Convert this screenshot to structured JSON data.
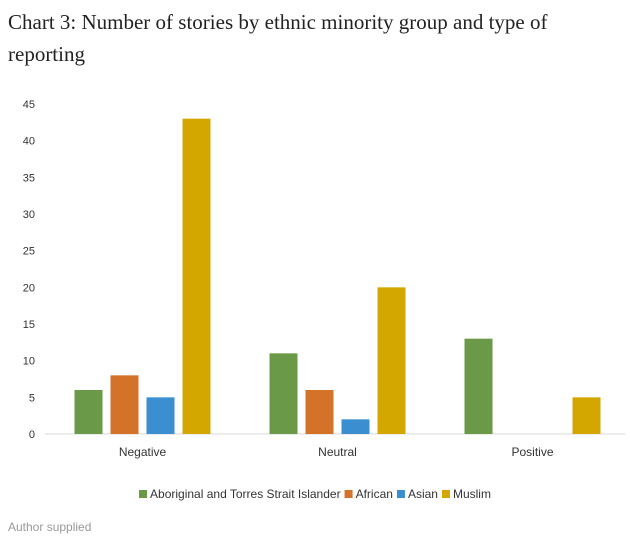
{
  "figure": {
    "title": "Chart 3: Number of stories by ethnic minority group and type of reporting",
    "caption": "Author supplied"
  },
  "chart_data": {
    "type": "bar",
    "title": "",
    "xlabel": "",
    "ylabel": "",
    "categories": [
      "Negative",
      "Neutral",
      "Positive"
    ],
    "series": [
      {
        "name": "Aboriginal and Torres Strait Islander",
        "color": "#6a9a48",
        "values": [
          6,
          11,
          13
        ]
      },
      {
        "name": "African",
        "color": "#d4722a",
        "values": [
          8,
          6,
          0
        ]
      },
      {
        "name": "Asian",
        "color": "#3b8fd0",
        "values": [
          5,
          2,
          0
        ]
      },
      {
        "name": "Muslim",
        "color": "#d4a600",
        "values": [
          43,
          20,
          5
        ]
      }
    ],
    "ylim": [
      0,
      45
    ],
    "yticks": [
      0,
      5,
      10,
      15,
      20,
      25,
      30,
      35,
      40,
      45
    ],
    "grid": false,
    "legend_position": "bottom"
  }
}
